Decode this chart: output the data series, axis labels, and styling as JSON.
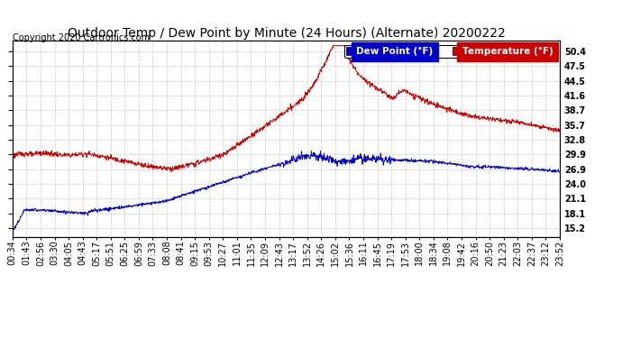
{
  "title": "Outdoor Temp / Dew Point by Minute (24 Hours) (Alternate) 20200222",
  "copyright": "Copyright 2020 Cartronics.com",
  "legend_dew": "Dew Point (°F)",
  "legend_temp": "Temperature (°F)",
  "yticks": [
    15.2,
    18.1,
    21.1,
    24.0,
    26.9,
    29.9,
    32.8,
    35.7,
    38.7,
    41.6,
    44.5,
    47.5,
    50.4
  ],
  "ylim": [
    13.5,
    52.5
  ],
  "xlim": [
    0,
    1439
  ],
  "x_tick_labels": [
    "00:34",
    "01:43",
    "02:56",
    "03:30",
    "04:05",
    "04:43",
    "05:17",
    "05:51",
    "06:25",
    "06:59",
    "07:33",
    "08:08",
    "08:41",
    "09:15",
    "09:53",
    "10:27",
    "11:01",
    "11:35",
    "12:09",
    "12:43",
    "13:17",
    "13:52",
    "14:26",
    "15:02",
    "15:36",
    "16:11",
    "16:45",
    "17:19",
    "17:53",
    "18:00",
    "18:34",
    "19:08",
    "19:42",
    "20:16",
    "20:50",
    "21:23",
    "22:03",
    "22:37",
    "23:12",
    "23:52"
  ],
  "temp_color": "#cc0000",
  "dew_color": "#0000cc",
  "bg_color": "#ffffff",
  "grid_color": "#999999",
  "title_fontsize": 10,
  "copyright_fontsize": 7,
  "tick_fontsize": 7,
  "legend_fontsize": 7.5
}
